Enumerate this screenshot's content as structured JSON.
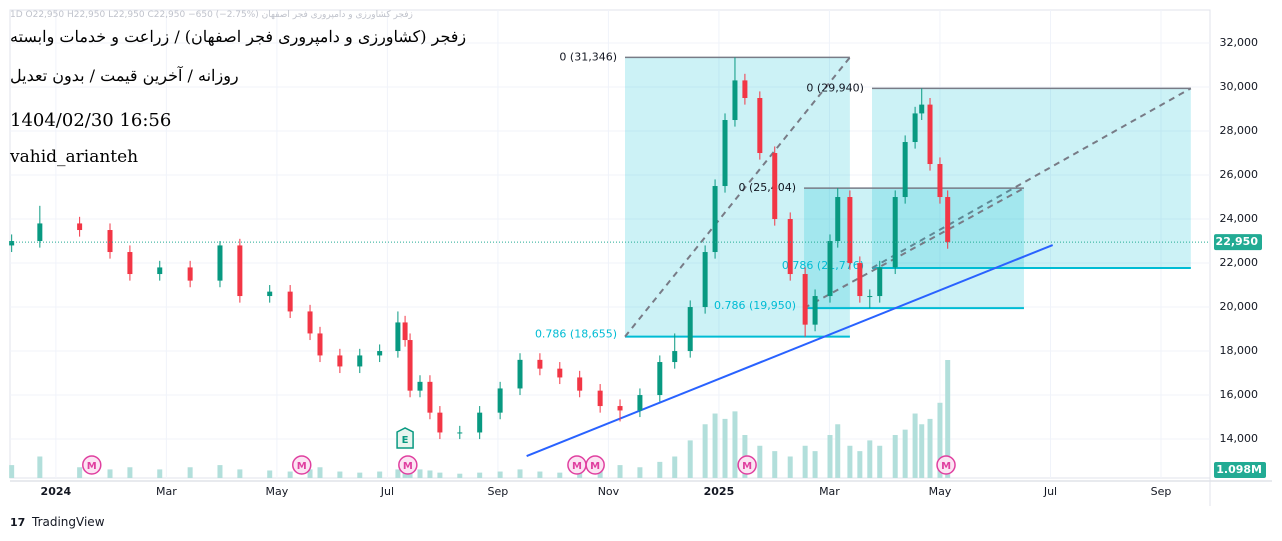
{
  "chart_data": {
    "type": "candlestick",
    "legend_text": "زفجر کشاورزی و دامپروری فجر اصفهان 1D O22,950 H22,950 L22,950 C22,950 −650 (−2.75%)",
    "title": "زفجر (کشاورزی و دامپروری فجر اصفهان) / زراعت و خدمات وابسته",
    "subtitle": "روزانه / آخرین قیمت / بدون تعدیل",
    "timestamp": "1404/02/30 16:56",
    "author": "vahid_arianteh",
    "brand": "TradingView",
    "up_color": "#089981",
    "down_color": "#f23645",
    "x": [
      -0.8,
      -0.29,
      0.43,
      0.98,
      1.34,
      1.88,
      2.43,
      2.97,
      3.33,
      3.87,
      4.24,
      4.6,
      4.78,
      5.14,
      5.5,
      5.86,
      6.19,
      6.32,
      6.41,
      6.59,
      6.77,
      6.95,
      7.31,
      7.67,
      8.04,
      8.4,
      8.76,
      9.12,
      9.48,
      9.85,
      10.21,
      10.57,
      10.93,
      11.2,
      11.48,
      11.75,
      11.93,
      12.11,
      12.29,
      12.47,
      12.74,
      13.01,
      13.29,
      13.56,
      13.74,
      14.01,
      14.15,
      14.37,
      14.55,
      14.73,
      14.91,
      15.19,
      15.37,
      15.55,
      15.67,
      15.82,
      16.0,
      16.14
    ],
    "open": [
      22800,
      23000,
      23800,
      23500,
      22500,
      21500,
      21800,
      21200,
      22800,
      20500,
      20700,
      19800,
      18800,
      17800,
      17300,
      17800,
      18000,
      19300,
      18500,
      16200,
      16600,
      15200,
      14300,
      14300,
      15200,
      16300,
      17600,
      17200,
      16800,
      16200,
      15500,
      15300,
      16000,
      17500,
      18000,
      20000,
      22500,
      25500,
      28500,
      30300,
      29500,
      27000,
      24000,
      21500,
      19200,
      20500,
      23000,
      25000,
      22000,
      20500,
      20500,
      21800,
      25000,
      27500,
      28800,
      29200,
      26500,
      25000
    ],
    "high": [
      23300,
      24600,
      24100,
      23800,
      22800,
      22100,
      22100,
      23000,
      23100,
      21000,
      21000,
      20100,
      19100,
      18100,
      18100,
      18300,
      19800,
      19600,
      18800,
      16900,
      16900,
      15500,
      14600,
      15500,
      16600,
      17900,
      17900,
      17500,
      17100,
      16500,
      15800,
      16300,
      17800,
      18800,
      20300,
      22800,
      25800,
      28800,
      31346,
      30600,
      29800,
      27300,
      24300,
      21800,
      20800,
      23300,
      25404,
      25300,
      22300,
      20800,
      22100,
      25300,
      27800,
      29100,
      29940,
      29500,
      26800,
      25300
    ],
    "low": [
      22500,
      22700,
      23200,
      22200,
      21200,
      21200,
      20900,
      20900,
      20200,
      20200,
      19500,
      18500,
      17500,
      17000,
      17000,
      17500,
      17700,
      18200,
      15900,
      15900,
      14900,
      14000,
      14000,
      14000,
      14900,
      16000,
      16900,
      16500,
      15900,
      15200,
      14800,
      15000,
      15700,
      17200,
      17700,
      19700,
      22200,
      25200,
      28200,
      29200,
      26700,
      23700,
      21200,
      18655,
      18900,
      20200,
      22700,
      21700,
      20200,
      19950,
      20200,
      21500,
      24700,
      27200,
      28500,
      26200,
      24700,
      22650
    ],
    "close": [
      23000,
      23800,
      23500,
      22500,
      21500,
      21800,
      21200,
      22800,
      20500,
      20700,
      19800,
      18800,
      17800,
      17300,
      17800,
      18000,
      19300,
      18500,
      16200,
      16600,
      15200,
      14300,
      14300,
      15200,
      16300,
      17600,
      17200,
      16800,
      16200,
      15500,
      15300,
      16000,
      17500,
      18000,
      20000,
      22500,
      25500,
      28500,
      30300,
      29500,
      27000,
      24000,
      21500,
      19200,
      20500,
      23000,
      25000,
      22000,
      20500,
      20500,
      21800,
      25000,
      27500,
      28800,
      29200,
      26500,
      25000,
      22950
    ],
    "volume": [
      0.12,
      0.2,
      0.1,
      0.08,
      0.1,
      0.08,
      0.1,
      0.12,
      0.08,
      0.07,
      0.06,
      0.08,
      0.1,
      0.06,
      0.05,
      0.06,
      0.08,
      0.1,
      0.15,
      0.08,
      0.07,
      0.05,
      0.04,
      0.05,
      0.06,
      0.08,
      0.06,
      0.05,
      0.07,
      0.09,
      0.12,
      0.1,
      0.15,
      0.2,
      0.35,
      0.5,
      0.6,
      0.55,
      0.62,
      0.4,
      0.3,
      0.25,
      0.2,
      0.3,
      0.25,
      0.4,
      0.5,
      0.3,
      0.25,
      0.35,
      0.3,
      0.4,
      0.45,
      0.6,
      0.5,
      0.55,
      0.7,
      1.098
    ],
    "volume_color": "#b2dfdb",
    "volume_label": "1.098M",
    "last_price": {
      "value": 22950,
      "label": "22,950"
    },
    "last_price_color": "#22ab94",
    "xlim": [
      -0.83,
      20.887
    ],
    "ylim": [
      12230,
      33500
    ],
    "xticks": [
      {
        "value": 0,
        "label": "2024"
      },
      {
        "value": 2,
        "label": "Mar"
      },
      {
        "value": 4,
        "label": "May"
      },
      {
        "value": 6,
        "label": "Jul"
      },
      {
        "value": 8,
        "label": "Sep"
      },
      {
        "value": 10,
        "label": "Nov"
      },
      {
        "value": 12,
        "label": "2025"
      },
      {
        "value": 14,
        "label": "Mar"
      },
      {
        "value": 16,
        "label": "May"
      },
      {
        "value": 18,
        "label": "Jul"
      },
      {
        "value": 20,
        "label": "Sep"
      }
    ],
    "yticks": [
      {
        "value": 14000,
        "label": "14,000"
      },
      {
        "value": 16000,
        "label": "16,000"
      },
      {
        "value": 18000,
        "label": "18,000"
      },
      {
        "value": 20000,
        "label": "20,000"
      },
      {
        "value": 22000,
        "label": "22,000"
      },
      {
        "value": 24000,
        "label": "24,000"
      },
      {
        "value": 26000,
        "label": "26,000"
      },
      {
        "value": 28000,
        "label": "28,000"
      },
      {
        "value": 30000,
        "label": "30,000"
      },
      {
        "value": 32000,
        "label": "32,000"
      }
    ],
    "grid": true,
    "fib_zones": [
      {
        "x_start": 10.3,
        "x_end": 14.37,
        "top": 31346,
        "bottom": 18655,
        "top_label": "0 (31,346)",
        "bottom_label": "0.786 (18,655)"
      },
      {
        "x_start": 14.77,
        "x_end": 20.54,
        "top": 29940,
        "bottom": 21776,
        "top_label": "0 (29,940)",
        "bottom_label": "0.786 (21,776)"
      },
      {
        "x_start": 13.54,
        "x_end": 17.52,
        "top": 25404,
        "bottom": 19950,
        "top_label": "0 (25,404)",
        "bottom_label": "0.786 (19,950)"
      }
    ],
    "fib_color": "#00bcd4",
    "trendline": {
      "x": [
        8.52,
        18.04
      ],
      "y": [
        13227,
        22818
      ],
      "color": "#2962ff"
    },
    "events": [
      {
        "x": 0.65,
        "label": "M"
      },
      {
        "x": 4.45,
        "label": "M"
      },
      {
        "x": 6.37,
        "label": "M"
      },
      {
        "x": 9.43,
        "label": "M"
      },
      {
        "x": 9.76,
        "label": "M"
      },
      {
        "x": 12.51,
        "label": "M"
      },
      {
        "x": 16.11,
        "label": "M"
      }
    ],
    "earnings": [
      {
        "x": 6.32,
        "label": "E"
      }
    ]
  }
}
